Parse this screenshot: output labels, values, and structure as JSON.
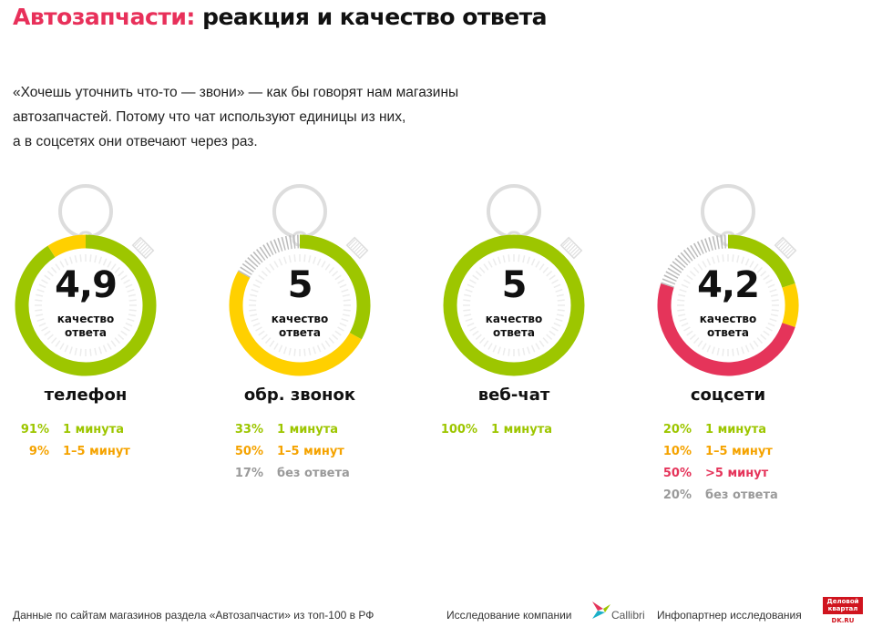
{
  "title": {
    "accent": "Автозапчасти:",
    "rest": " реакция и качество ответа"
  },
  "lead": [
    "«Хочешь уточнить что-то — звони» — как бы говорят нам магазины",
    "автозапчастей. Потому что чат используют единицы из них,",
    "а в соцсетях они отвечают через раз."
  ],
  "quality_label": [
    "качество",
    "ответа"
  ],
  "colors": {
    "green": "#9dc600",
    "yellow": "#ffd000",
    "red": "#e5345a",
    "gray": "#c8c8c8",
    "orange_text": "#f5a300",
    "gray_text": "#9a9a9a",
    "title_accent": "#e8305a"
  },
  "chart_data": [
    {
      "type": "pie",
      "name": "телефон",
      "score": "4,9",
      "segments": [
        {
          "value": 91,
          "label": "1 минута",
          "color": "green"
        },
        {
          "value": 9,
          "label": "1–5 минут",
          "color": "yellow"
        }
      ]
    },
    {
      "type": "pie",
      "name": "обр. звонок",
      "score": "5",
      "segments": [
        {
          "value": 33,
          "label": "1 минута",
          "color": "green"
        },
        {
          "value": 50,
          "label": "1–5 минут",
          "color": "yellow"
        },
        {
          "value": 17,
          "label": "без ответа",
          "color": "gray"
        }
      ]
    },
    {
      "type": "pie",
      "name": "веб-чат",
      "score": "5",
      "segments": [
        {
          "value": 100,
          "label": "1 минута",
          "color": "green"
        }
      ]
    },
    {
      "type": "pie",
      "name": "соцсети",
      "score": "4,2",
      "segments": [
        {
          "value": 20,
          "label": "1 минута",
          "color": "green"
        },
        {
          "value": 10,
          "label": "1–5 минут",
          "color": "yellow"
        },
        {
          "value": 50,
          "label": ">5 минут",
          "color": "red"
        },
        {
          "value": 20,
          "label": "без ответа",
          "color": "gray"
        }
      ]
    }
  ],
  "footer": {
    "source": "Данные по сайтам магазинов раздела «Автозапчасти» из топ-100 в РФ",
    "research": "Исследование компании",
    "research_logo": "Callibri",
    "partner": "Инфопартнер исследования",
    "partner_logo": "Деловой квартал",
    "partner_site": "DK.RU"
  }
}
